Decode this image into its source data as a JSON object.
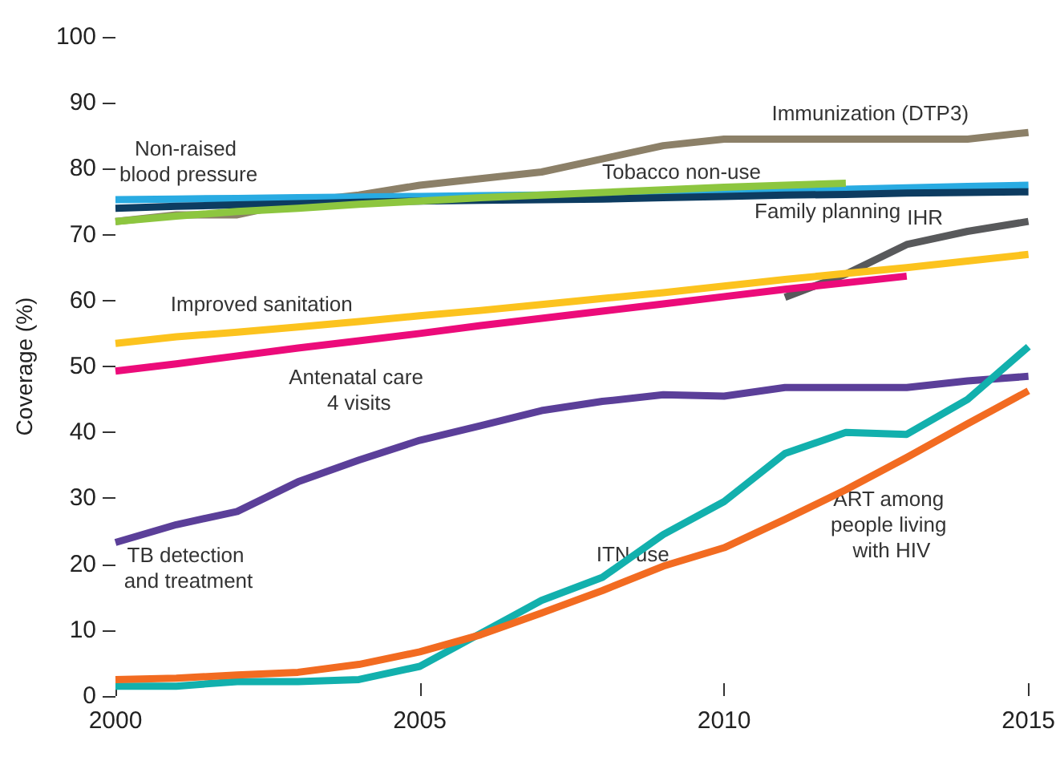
{
  "chart_data": {
    "type": "line",
    "ylabel": "Coverage (%)",
    "x": [
      2000,
      2001,
      2002,
      2003,
      2004,
      2005,
      2006,
      2007,
      2008,
      2009,
      2010,
      2011,
      2012,
      2013,
      2014,
      2015
    ],
    "xlim": [
      2000,
      2015
    ],
    "xticks": [
      2000,
      2005,
      2010,
      2015
    ],
    "ylim": [
      0,
      100
    ],
    "yticks": [
      0,
      10,
      20,
      30,
      40,
      50,
      60,
      70,
      80,
      90,
      100
    ],
    "grid": false,
    "marker": "none",
    "line_style": "solid",
    "series": [
      {
        "name": "Immunization (DTP3)",
        "color": "#8c8068",
        "values": [
          72,
          73,
          73,
          75,
          76,
          77.5,
          78.5,
          79.5,
          81.5,
          83.5,
          84.5,
          84.5,
          84.5,
          84.5,
          84.5,
          85.5
        ]
      },
      {
        "name": "Non-raised blood pressure",
        "color": "#29abe2",
        "values": [
          75.3,
          75.4,
          75.5,
          75.6,
          75.7,
          75.8,
          75.9,
          76,
          76.1,
          76.3,
          76.5,
          76.7,
          76.9,
          77.1,
          77.3,
          77.5
        ]
      },
      {
        "name": "Family planning",
        "color": "#0d3c61",
        "values": [
          74,
          74.3,
          74.5,
          74.7,
          74.9,
          75.1,
          75.2,
          75.3,
          75.4,
          75.6,
          75.8,
          76,
          76.1,
          76.3,
          76.4,
          76.5
        ]
      },
      {
        "name": "Tobacco non-use",
        "color": "#8dc63f",
        "values": [
          72,
          72.8,
          73.5,
          74,
          74.6,
          75.1,
          75.6,
          76,
          76.4,
          76.8,
          77.2,
          77.5,
          77.8,
          null,
          null,
          null
        ]
      },
      {
        "name": "IHR",
        "color": "#58595b",
        "values": [
          null,
          null,
          null,
          null,
          null,
          null,
          null,
          null,
          null,
          null,
          null,
          60.5,
          64,
          68.5,
          70.5,
          72
        ]
      },
      {
        "name": "Improved sanitation",
        "color": "#fcc31e",
        "values": [
          53.5,
          54.5,
          55.2,
          56,
          56.8,
          57.7,
          58.5,
          59.4,
          60.3,
          61.2,
          62.2,
          63.2,
          64.1,
          65,
          66,
          67
        ]
      },
      {
        "name": "Antenatal care 4 visits",
        "color": "#ec0b7a",
        "values": [
          49.3,
          50.4,
          51.6,
          52.8,
          53.9,
          55,
          56.2,
          57.3,
          58.4,
          59.5,
          60.6,
          61.7,
          62.7,
          63.7,
          null,
          null
        ]
      },
      {
        "name": "TB detection and treatment",
        "color": "#5b3f99",
        "values": [
          23.3,
          26,
          28,
          32.5,
          35.8,
          38.8,
          41,
          43.3,
          44.7,
          45.7,
          45.5,
          46.8,
          46.8,
          46.8,
          47.8,
          48.5
        ]
      },
      {
        "name": "ITN use",
        "color": "#12b0ad",
        "values": [
          1.5,
          1.5,
          2.2,
          2.2,
          2.5,
          4.5,
          9.5,
          14.5,
          18,
          24.5,
          29.5,
          36.8,
          40,
          39.7,
          45,
          53
        ]
      },
      {
        "name": "ART among people living with HIV",
        "color": "#f26b21",
        "values": [
          2.5,
          2.7,
          3.2,
          3.6,
          4.8,
          6.7,
          9.3,
          12.6,
          16,
          19.7,
          22.5,
          26.8,
          31.3,
          36.2,
          41.3,
          46.3
        ]
      }
    ]
  }
}
